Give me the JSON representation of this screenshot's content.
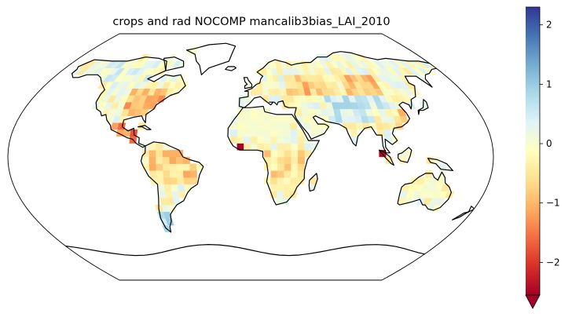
{
  "title": "crops and rad NOCOMP mancalib3bias_LAI_2010",
  "colorbar": {
    "ticks": [
      {
        "value": 2,
        "label": "2"
      },
      {
        "value": 1,
        "label": "1"
      },
      {
        "value": 0,
        "label": "0"
      },
      {
        "value": -1,
        "label": "−1"
      },
      {
        "value": -2,
        "label": "−2"
      }
    ],
    "vmin": -2.55,
    "vmax": 2.3,
    "extend": "min",
    "colormap": "RdYlBu",
    "colors": [
      "#a50026",
      "#d73027",
      "#f46d43",
      "#fdae61",
      "#fee090",
      "#ffffbf",
      "#e0f3f8",
      "#abd9e9",
      "#74add1",
      "#4575b4",
      "#313695"
    ]
  },
  "map": {
    "projection": "Robinson",
    "background": "#ffffff",
    "coastline_color": "#000000"
  }
}
